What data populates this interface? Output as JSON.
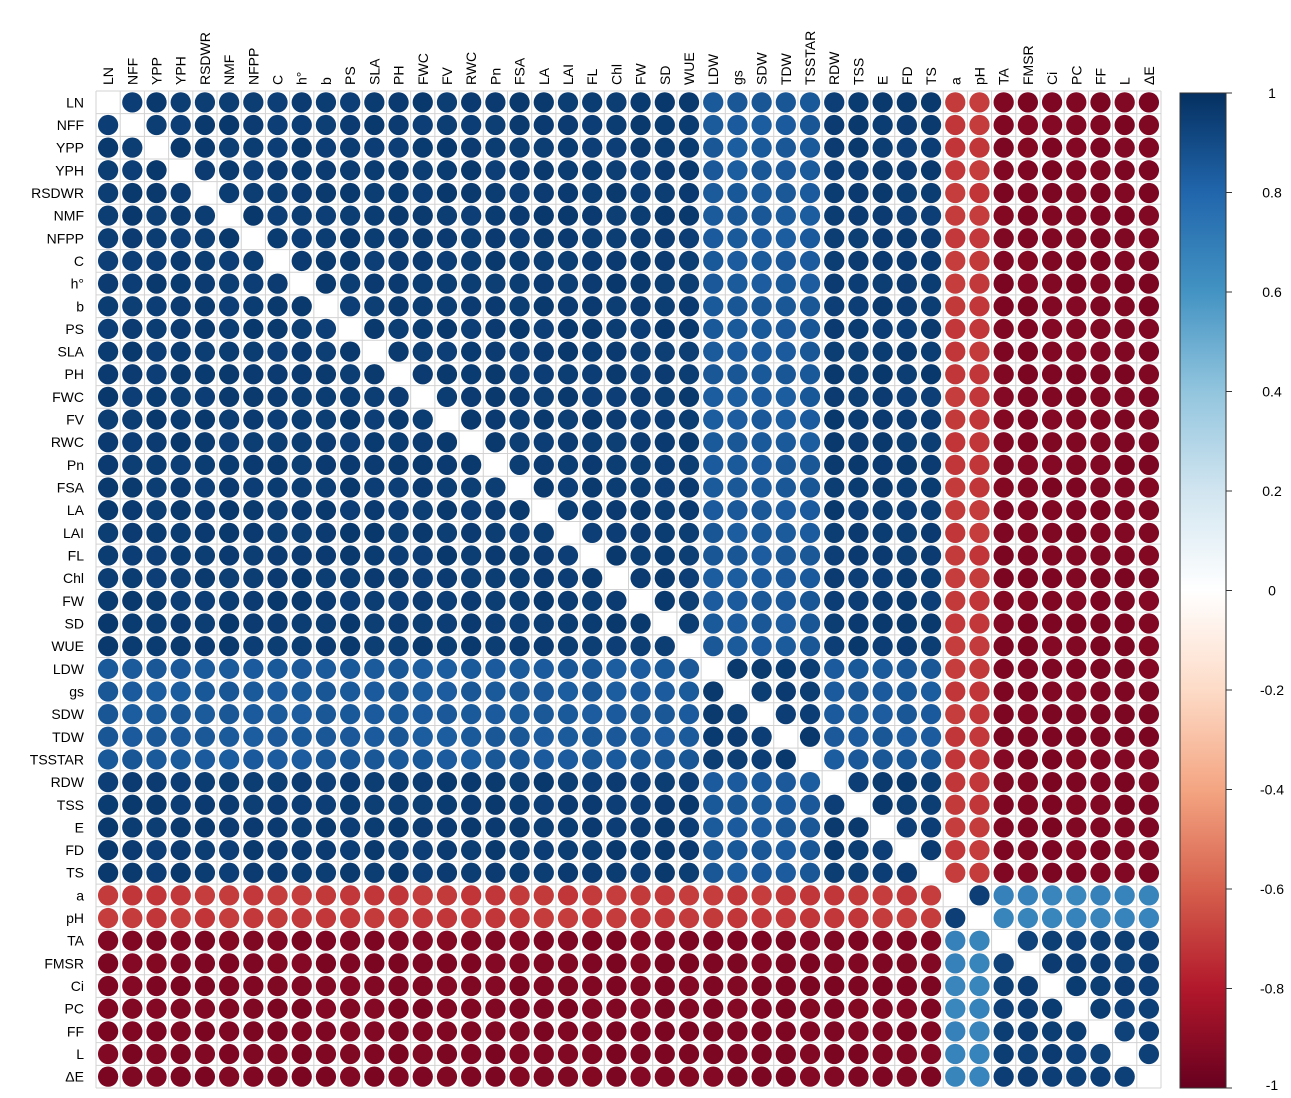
{
  "chart_data": {
    "type": "heatmap",
    "title": "",
    "xlabel": "",
    "ylabel": "",
    "variables": [
      "LN",
      "NFF",
      "YPP",
      "YPH",
      "RSDWR",
      "NMF",
      "NFPP",
      "C",
      "h°",
      "b",
      "PS",
      "SLA",
      "PH",
      "FWC",
      "FV",
      "RWC",
      "Pn",
      "FSA",
      "LA",
      "LAI",
      "FL",
      "Chl",
      "FW",
      "SD",
      "WUE",
      "LDW",
      "gs",
      "SDW",
      "TDW",
      "TSSTAR",
      "RDW",
      "TSS",
      "E",
      "FD",
      "TS",
      "a",
      "pH",
      "TA",
      "FMSR",
      "Ci",
      "PC",
      "FF",
      "L",
      "ΔE"
    ],
    "group_a": [
      "LN",
      "NFF",
      "YPP",
      "YPH",
      "RSDWR",
      "NMF",
      "NFPP",
      "C",
      "h°",
      "b",
      "PS",
      "SLA",
      "PH",
      "FWC",
      "FV",
      "RWC",
      "Pn",
      "FSA",
      "LA",
      "LAI",
      "FL",
      "Chl",
      "FW",
      "SD",
      "WUE",
      "LDW",
      "gs",
      "SDW",
      "TDW",
      "TSSTAR",
      "RDW",
      "TSS",
      "E",
      "FD",
      "TS"
    ],
    "group_b": [
      "a",
      "pH"
    ],
    "group_c": [
      "TA",
      "FMSR",
      "Ci",
      "PC",
      "FF",
      "L",
      "ΔE"
    ],
    "strong_positive": 0.97,
    "within_a_moderate": {
      "vars": [
        "LDW",
        "gs",
        "SDW",
        "TDW",
        "TSSTAR"
      ],
      "value": 0.86
    },
    "a_vs_b": -0.72,
    "a_vs_c": -0.95,
    "b_vs_c": 0.68,
    "b_vs_b": 0.97,
    "c_vs_c": 0.96,
    "color_scale": {
      "min": -1,
      "max": 1,
      "ticks": [
        "1",
        "0.8",
        "0.6",
        "0.4",
        "0.2",
        "0",
        "-0.2",
        "-0.4",
        "-0.6",
        "-0.8",
        "-1"
      ],
      "stops": [
        "#67001f",
        "#b2182b",
        "#d6604d",
        "#f4a582",
        "#fddbc7",
        "#ffffff",
        "#d1e5f0",
        "#92c5de",
        "#4393c3",
        "#2166ac",
        "#053061"
      ]
    },
    "legend_placement": "right"
  }
}
